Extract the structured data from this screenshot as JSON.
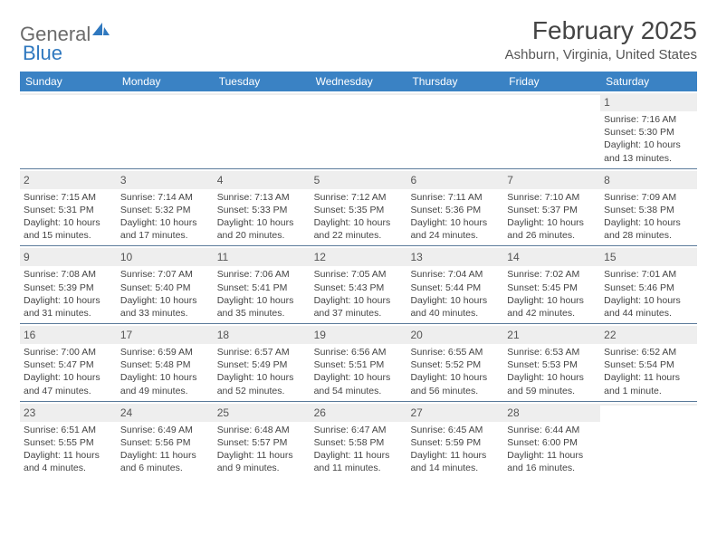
{
  "logo": {
    "textA": "General",
    "textB": "Blue"
  },
  "title": "February 2025",
  "location": "Ashburn, Virginia, United States",
  "colors": {
    "header_bar": "#3a82c4",
    "daynum_bg": "#eeeeee",
    "week_border": "#5a7a9a",
    "logo_gray": "#6b6b6b",
    "logo_blue": "#2f78bf",
    "text": "#444444"
  },
  "day_headers": [
    "Sunday",
    "Monday",
    "Tuesday",
    "Wednesday",
    "Thursday",
    "Friday",
    "Saturday"
  ],
  "weeks": [
    [
      {
        "blank": true
      },
      {
        "blank": true
      },
      {
        "blank": true
      },
      {
        "blank": true
      },
      {
        "blank": true
      },
      {
        "blank": true
      },
      {
        "day": "1",
        "sunrise": "Sunrise: 7:16 AM",
        "sunset": "Sunset: 5:30 PM",
        "daylight1": "Daylight: 10 hours",
        "daylight2": "and 13 minutes."
      }
    ],
    [
      {
        "day": "2",
        "sunrise": "Sunrise: 7:15 AM",
        "sunset": "Sunset: 5:31 PM",
        "daylight1": "Daylight: 10 hours",
        "daylight2": "and 15 minutes."
      },
      {
        "day": "3",
        "sunrise": "Sunrise: 7:14 AM",
        "sunset": "Sunset: 5:32 PM",
        "daylight1": "Daylight: 10 hours",
        "daylight2": "and 17 minutes."
      },
      {
        "day": "4",
        "sunrise": "Sunrise: 7:13 AM",
        "sunset": "Sunset: 5:33 PM",
        "daylight1": "Daylight: 10 hours",
        "daylight2": "and 20 minutes."
      },
      {
        "day": "5",
        "sunrise": "Sunrise: 7:12 AM",
        "sunset": "Sunset: 5:35 PM",
        "daylight1": "Daylight: 10 hours",
        "daylight2": "and 22 minutes."
      },
      {
        "day": "6",
        "sunrise": "Sunrise: 7:11 AM",
        "sunset": "Sunset: 5:36 PM",
        "daylight1": "Daylight: 10 hours",
        "daylight2": "and 24 minutes."
      },
      {
        "day": "7",
        "sunrise": "Sunrise: 7:10 AM",
        "sunset": "Sunset: 5:37 PM",
        "daylight1": "Daylight: 10 hours",
        "daylight2": "and 26 minutes."
      },
      {
        "day": "8",
        "sunrise": "Sunrise: 7:09 AM",
        "sunset": "Sunset: 5:38 PM",
        "daylight1": "Daylight: 10 hours",
        "daylight2": "and 28 minutes."
      }
    ],
    [
      {
        "day": "9",
        "sunrise": "Sunrise: 7:08 AM",
        "sunset": "Sunset: 5:39 PM",
        "daylight1": "Daylight: 10 hours",
        "daylight2": "and 31 minutes."
      },
      {
        "day": "10",
        "sunrise": "Sunrise: 7:07 AM",
        "sunset": "Sunset: 5:40 PM",
        "daylight1": "Daylight: 10 hours",
        "daylight2": "and 33 minutes."
      },
      {
        "day": "11",
        "sunrise": "Sunrise: 7:06 AM",
        "sunset": "Sunset: 5:41 PM",
        "daylight1": "Daylight: 10 hours",
        "daylight2": "and 35 minutes."
      },
      {
        "day": "12",
        "sunrise": "Sunrise: 7:05 AM",
        "sunset": "Sunset: 5:43 PM",
        "daylight1": "Daylight: 10 hours",
        "daylight2": "and 37 minutes."
      },
      {
        "day": "13",
        "sunrise": "Sunrise: 7:04 AM",
        "sunset": "Sunset: 5:44 PM",
        "daylight1": "Daylight: 10 hours",
        "daylight2": "and 40 minutes."
      },
      {
        "day": "14",
        "sunrise": "Sunrise: 7:02 AM",
        "sunset": "Sunset: 5:45 PM",
        "daylight1": "Daylight: 10 hours",
        "daylight2": "and 42 minutes."
      },
      {
        "day": "15",
        "sunrise": "Sunrise: 7:01 AM",
        "sunset": "Sunset: 5:46 PM",
        "daylight1": "Daylight: 10 hours",
        "daylight2": "and 44 minutes."
      }
    ],
    [
      {
        "day": "16",
        "sunrise": "Sunrise: 7:00 AM",
        "sunset": "Sunset: 5:47 PM",
        "daylight1": "Daylight: 10 hours",
        "daylight2": "and 47 minutes."
      },
      {
        "day": "17",
        "sunrise": "Sunrise: 6:59 AM",
        "sunset": "Sunset: 5:48 PM",
        "daylight1": "Daylight: 10 hours",
        "daylight2": "and 49 minutes."
      },
      {
        "day": "18",
        "sunrise": "Sunrise: 6:57 AM",
        "sunset": "Sunset: 5:49 PM",
        "daylight1": "Daylight: 10 hours",
        "daylight2": "and 52 minutes."
      },
      {
        "day": "19",
        "sunrise": "Sunrise: 6:56 AM",
        "sunset": "Sunset: 5:51 PM",
        "daylight1": "Daylight: 10 hours",
        "daylight2": "and 54 minutes."
      },
      {
        "day": "20",
        "sunrise": "Sunrise: 6:55 AM",
        "sunset": "Sunset: 5:52 PM",
        "daylight1": "Daylight: 10 hours",
        "daylight2": "and 56 minutes."
      },
      {
        "day": "21",
        "sunrise": "Sunrise: 6:53 AM",
        "sunset": "Sunset: 5:53 PM",
        "daylight1": "Daylight: 10 hours",
        "daylight2": "and 59 minutes."
      },
      {
        "day": "22",
        "sunrise": "Sunrise: 6:52 AM",
        "sunset": "Sunset: 5:54 PM",
        "daylight1": "Daylight: 11 hours",
        "daylight2": "and 1 minute."
      }
    ],
    [
      {
        "day": "23",
        "sunrise": "Sunrise: 6:51 AM",
        "sunset": "Sunset: 5:55 PM",
        "daylight1": "Daylight: 11 hours",
        "daylight2": "and 4 minutes."
      },
      {
        "day": "24",
        "sunrise": "Sunrise: 6:49 AM",
        "sunset": "Sunset: 5:56 PM",
        "daylight1": "Daylight: 11 hours",
        "daylight2": "and 6 minutes."
      },
      {
        "day": "25",
        "sunrise": "Sunrise: 6:48 AM",
        "sunset": "Sunset: 5:57 PM",
        "daylight1": "Daylight: 11 hours",
        "daylight2": "and 9 minutes."
      },
      {
        "day": "26",
        "sunrise": "Sunrise: 6:47 AM",
        "sunset": "Sunset: 5:58 PM",
        "daylight1": "Daylight: 11 hours",
        "daylight2": "and 11 minutes."
      },
      {
        "day": "27",
        "sunrise": "Sunrise: 6:45 AM",
        "sunset": "Sunset: 5:59 PM",
        "daylight1": "Daylight: 11 hours",
        "daylight2": "and 14 minutes."
      },
      {
        "day": "28",
        "sunrise": "Sunrise: 6:44 AM",
        "sunset": "Sunset: 6:00 PM",
        "daylight1": "Daylight: 11 hours",
        "daylight2": "and 16 minutes."
      },
      {
        "blank": true
      }
    ]
  ]
}
